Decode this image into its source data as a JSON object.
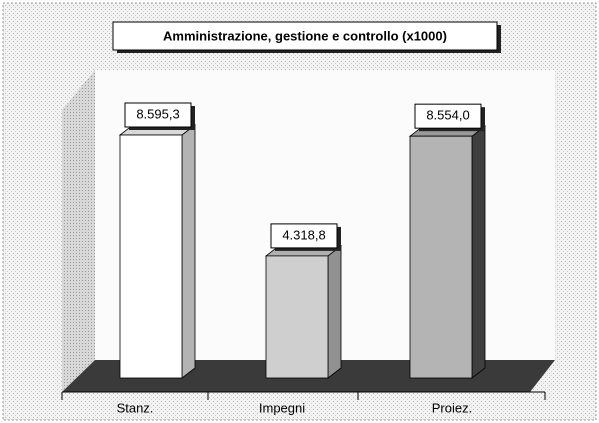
{
  "chart_data": {
    "type": "bar3d",
    "title": "Amministrazione, gestione e controllo (x1000)",
    "categories": [
      "Stanz.",
      "Impegni",
      "Proiez."
    ],
    "values": [
      8595.3,
      4318.8,
      8554.0
    ],
    "value_labels": [
      "8.595,3",
      "4.318,8",
      "8.554,0"
    ],
    "colors": [
      "#ffffff",
      "#cfcfcf",
      "#b4b4b4"
    ]
  }
}
